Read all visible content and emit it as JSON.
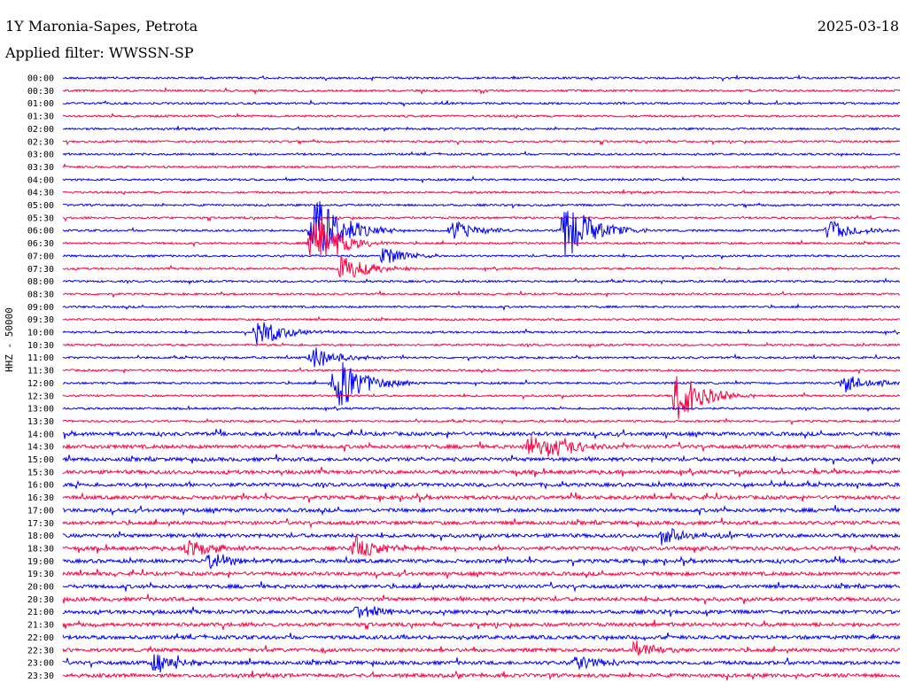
{
  "header": {
    "station": "1Y Maronia-Sapes, Petrota",
    "date": "2025-03-18",
    "filter": "Applied filter: WWSSN-SP"
  },
  "channel_label": "HHZ - 50000",
  "colors": {
    "odd_trace": "#0000ff",
    "even_trace": "#ff0040",
    "background": "#ffffff",
    "text": "#000000"
  },
  "chart_data": {
    "type": "line",
    "title": "",
    "xlabel": "",
    "ylabel": "HHZ - 50000",
    "x_span_minutes": 30,
    "row_labels": [
      "00:00",
      "00:30",
      "01:00",
      "01:30",
      "02:00",
      "02:30",
      "03:00",
      "03:30",
      "04:00",
      "04:30",
      "05:00",
      "05:30",
      "06:00",
      "06:30",
      "07:00",
      "07:30",
      "08:00",
      "08:30",
      "09:00",
      "09:30",
      "10:00",
      "10:30",
      "11:00",
      "11:30",
      "12:00",
      "12:30",
      "13:00",
      "13:30",
      "14:00",
      "14:30",
      "15:00",
      "15:30",
      "16:00",
      "16:30",
      "17:00",
      "17:30",
      "18:00",
      "18:30",
      "19:00",
      "19:30",
      "20:00",
      "20:30",
      "21:00",
      "21:30",
      "22:00",
      "22:30",
      "23:00",
      "23:30"
    ],
    "trace_colors": [
      "#0000ff",
      "#ff0040"
    ],
    "events": [
      {
        "row": 12,
        "minute": 9,
        "amplitude": 3.2
      },
      {
        "row": 13,
        "minute": 9,
        "amplitude": 2.4
      },
      {
        "row": 12,
        "minute": 18,
        "amplitude": 2.6
      },
      {
        "row": 15,
        "minute": 10,
        "amplitude": 1.2
      },
      {
        "row": 20,
        "minute": 7,
        "amplitude": 1.2
      },
      {
        "row": 22,
        "minute": 9,
        "amplitude": 1.0
      },
      {
        "row": 24,
        "minute": 9.8,
        "amplitude": 2.4
      },
      {
        "row": 25,
        "minute": 22,
        "amplitude": 2.2
      },
      {
        "row": 24,
        "minute": 28,
        "amplitude": 0.8
      },
      {
        "row": 14,
        "minute": 11.5,
        "amplitude": 0.8
      },
      {
        "row": 12,
        "minute": 14,
        "amplitude": 0.8
      },
      {
        "row": 12,
        "minute": 27.5,
        "amplitude": 0.9
      },
      {
        "row": 29,
        "minute": 16.7,
        "amplitude": 1.0
      },
      {
        "row": 29,
        "minute": 17.5,
        "amplitude": 0.9
      },
      {
        "row": 37,
        "minute": 10.5,
        "amplitude": 1.0
      },
      {
        "row": 37,
        "minute": 4.5,
        "amplitude": 0.8
      },
      {
        "row": 36,
        "minute": 21.5,
        "amplitude": 0.8
      },
      {
        "row": 38,
        "minute": 5.3,
        "amplitude": 0.8
      },
      {
        "row": 42,
        "minute": 10.5,
        "amplitude": 0.7
      },
      {
        "row": 45,
        "minute": 20.5,
        "amplitude": 0.7
      },
      {
        "row": 46,
        "minute": 3.3,
        "amplitude": 0.8
      },
      {
        "row": 46,
        "minute": 18.4,
        "amplitude": 0.6
      }
    ]
  }
}
